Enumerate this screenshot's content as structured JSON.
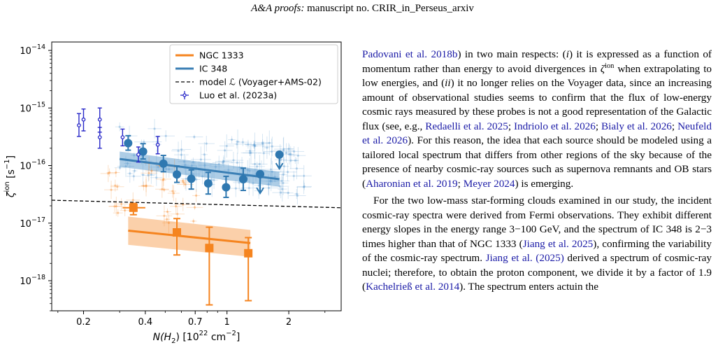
{
  "header": {
    "journal": "A&A proofs:",
    "manuscript": " manuscript no. CRIR_in_Perseus_arxiv"
  },
  "chart_data": {
    "type": "scatter",
    "xlabel_main": "N(H",
    "xlabel_sub": "2",
    "xlabel_tail": ") [10",
    "xlabel_exp": "22",
    "xlabel_unit": " cm",
    "xlabel_unit_exp": "−2",
    "xlabel_close": "]",
    "ylabel_main": "ζ",
    "ylabel_sup": "ion",
    "ylabel_tail": " [s",
    "ylabel_exp": "−1",
    "ylabel_close": "]",
    "xscale": "log",
    "yscale": "log",
    "xlim": [
      0.14,
      3.6
    ],
    "ylim": [
      3e-19,
      1.4e-14
    ],
    "xticks": [
      {
        "value": 0.2,
        "label": "0.2"
      },
      {
        "value": 0.4,
        "label": "0.4"
      },
      {
        "value": 0.7,
        "label": "0.7"
      },
      {
        "value": 1,
        "label": "1"
      },
      {
        "value": 2,
        "label": "2"
      }
    ],
    "yticks": [
      {
        "value": 1e-18,
        "mant": "10",
        "exp": "−18"
      },
      {
        "value": 1e-17,
        "mant": "10",
        "exp": "−17"
      },
      {
        "value": 1e-16,
        "mant": "10",
        "exp": "−16"
      },
      {
        "value": 1e-15,
        "mant": "10",
        "exp": "−15"
      },
      {
        "value": 1e-14,
        "mant": "10",
        "exp": "−14"
      }
    ],
    "legend": {
      "placement": "top-right",
      "entries": [
        {
          "label": "NGC 1333",
          "style": "line",
          "color": "#f5841f"
        },
        {
          "label": "IC 348",
          "style": "line",
          "color": "#3a7fb5"
        },
        {
          "label": "model ℒ (Voyager+AMS-02)",
          "style": "dashed",
          "color": "#000000"
        },
        {
          "label": "Luo et al. (2023a)",
          "style": "errorbar",
          "color": "#2626c8"
        }
      ]
    },
    "model_line": {
      "x": [
        0.14,
        3.6
      ],
      "y": [
        2.5e-17,
        1.85e-17
      ]
    },
    "ngc1333_fit": {
      "x": [
        0.33,
        1.3
      ],
      "y": [
        7.4e-18,
        4.5e-18
      ],
      "band_low": [
        4.2e-18,
        2.6e-18
      ],
      "band_high": [
        1.3e-17,
        7.6e-18
      ]
    },
    "ic348_fit": {
      "x": [
        0.3,
        1.8
      ],
      "y": [
        1.3e-16,
        5.8e-17
      ],
      "band_low": [
        9.5e-17,
        4.3e-17
      ],
      "band_high": [
        1.75e-16,
        7.8e-17
      ]
    },
    "ngc1333_points": [
      {
        "x": 0.35,
        "y": 1.85e-17,
        "ylo": 1.4e-17,
        "yhi": 2.2e-17,
        "xlo": 0.31,
        "xhi": 0.4
      },
      {
        "x": 0.57,
        "y": 6.9e-18,
        "ylo": 2.8e-18,
        "yhi": 1.2e-17
      },
      {
        "x": 0.82,
        "y": 3.7e-18,
        "ylo": 3.8e-19,
        "yhi": 8.5e-18
      },
      {
        "x": 1.27,
        "y": 3e-18,
        "ylo": 4.5e-19,
        "yhi": 5.6e-18
      }
    ],
    "ic348_points": [
      {
        "x": 0.33,
        "y": 2.45e-16,
        "ylo": 1.85e-16,
        "yhi": 3.3e-16
      },
      {
        "x": 0.39,
        "y": 1.75e-16,
        "ylo": 1.3e-16,
        "yhi": 2.4e-16
      },
      {
        "x": 0.49,
        "y": 1.08e-16,
        "ylo": 7.8e-17,
        "yhi": 1.5e-16
      },
      {
        "x": 0.57,
        "y": 7e-17,
        "ylo": 5.1e-17,
        "yhi": 9.8e-17
      },
      {
        "x": 0.67,
        "y": 5.9e-17,
        "ylo": 3.9e-17,
        "yhi": 8.4e-17
      },
      {
        "x": 0.81,
        "y": 4.9e-17,
        "ylo": 3.2e-17,
        "yhi": 7.6e-17
      },
      {
        "x": 0.99,
        "y": 4.2e-17,
        "ylo": 2.8e-17,
        "yhi": 6.5e-17
      },
      {
        "x": 1.2,
        "y": 5.8e-17,
        "ylo": 3.7e-17,
        "yhi": 9e-17
      },
      {
        "x": 1.45,
        "y": 7.1e-17,
        "upper_limit": true,
        "yarrow": 3.3e-17
      },
      {
        "x": 1.8,
        "y": 1.55e-16,
        "upper_limit": true,
        "yarrow": 8.8e-17
      }
    ],
    "luo_points": [
      {
        "x": 0.19,
        "y": 5e-16,
        "ylo": 3.2e-16,
        "yhi": 8e-16
      },
      {
        "x": 0.2,
        "y": 6.3e-16,
        "ylo": 4e-16,
        "yhi": 9.6e-16
      },
      {
        "x": 0.24,
        "y": 6.3e-16,
        "ylo": 3.8e-16,
        "yhi": 1e-15
      },
      {
        "x": 0.24,
        "y": 3.1e-16,
        "ylo": 2e-16,
        "yhi": 4.6e-16
      },
      {
        "x": 0.31,
        "y": 3.1e-16,
        "ylo": 2.2e-16,
        "yhi": 4.3e-16
      },
      {
        "x": 0.37,
        "y": 1.55e-16,
        "ylo": 1.15e-16,
        "yhi": 2.1e-16
      },
      {
        "x": 0.46,
        "y": 2.3e-16,
        "ylo": 1.6e-16,
        "yhi": 3.2e-16
      }
    ]
  },
  "text": {
    "p1_a": "Padovani et al. 2018b",
    "p1_b": ") in two main respects: (",
    "p1_i": "i",
    "p1_c": ") it is expressed as a function of momentum rather than energy to avoid divergences in ",
    "p1_zeta": "ζ",
    "p1_ion": "ion",
    "p1_d": " when extrapolating to low energies, and (",
    "p1_ii": "ii",
    "p1_e": ") it no longer relies on the Voyager data, since an increasing amount of observational studies seems to confirm that the flux of low-energy cosmic rays measured by these probes is not a good representation of the Galactic flux (see, e.g., ",
    "c_redaelli": "Redaelli et al. 2025",
    "sep1": "; ",
    "c_indriolo": "Indriolo et al. 2026",
    "sep2": "; ",
    "c_bialy": "Bialy et al. 2026",
    "sep3": "; ",
    "c_neufeld": "Neufeld et al. 2026",
    "p1_f": "). For this reason, the idea that each source should be modeled using a tailored local spectrum that differs from other regions of the sky because of the presence of nearby cosmic-ray sources such as supernova remnants and OB stars (",
    "c_aharonian": "Aharonian et al. 2019",
    "sep4": "; ",
    "c_meyer": "Meyer 2024",
    "p1_g": ") is emerging.",
    "p2_a": "For the two low-mass star-forming clouds examined in our study, the incident cosmic-ray spectra were derived from Fermi observations. They exhibit different energy slopes in the energy range 3−100 GeV, and the spectrum of IC 348 is 2−3 times higher than that of NGC 1333 (",
    "c_jiang1": "Jiang et al. 2025",
    "p2_b": "), confirming the variability of the cosmic-ray spectrum. ",
    "c_jiang2": "Jiang et al. (2025)",
    "p2_c": " derived a spectrum of cosmic-ray nuclei; therefore, to obtain the proton component, we divide it by a factor of 1.9 (",
    "c_kachelriess": "Kachelrieß et al. 2014",
    "p2_d": "). The spectrum enters actuin the"
  }
}
